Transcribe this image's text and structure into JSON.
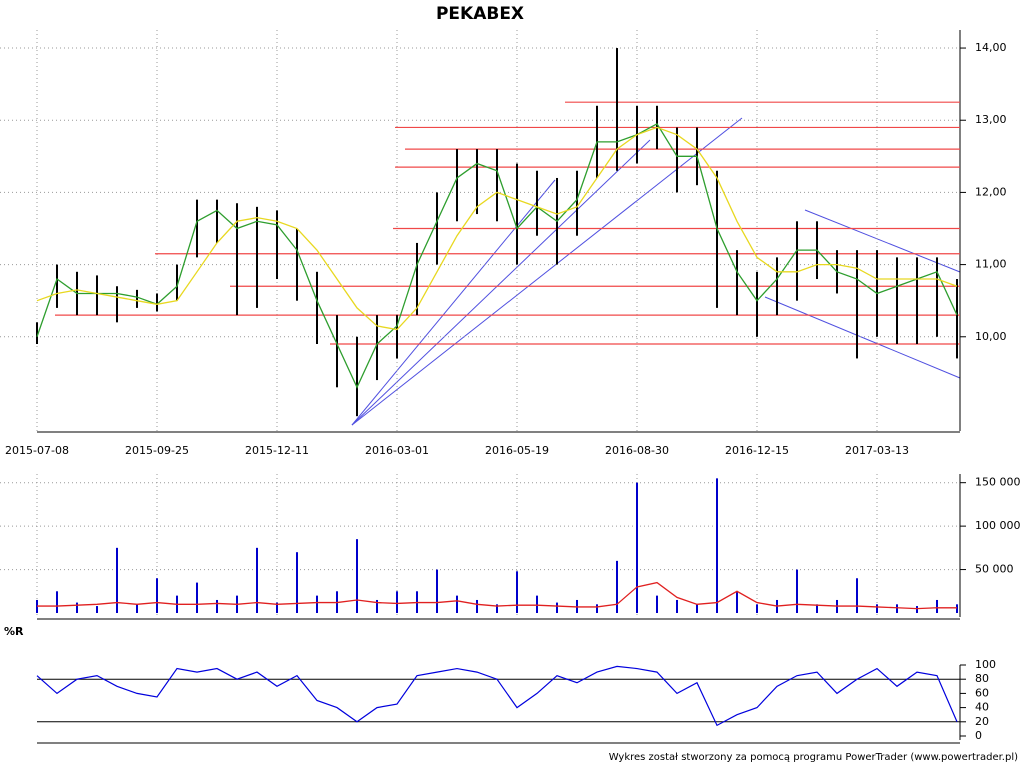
{
  "chart_data": [
    {
      "type": "ohlc",
      "title": "PEKABEX",
      "categories": [
        "2015-07-08",
        null,
        null,
        null,
        null,
        null,
        "2015-09-25",
        null,
        null,
        null,
        null,
        null,
        "2015-12-11",
        null,
        null,
        null,
        null,
        null,
        "2016-03-01",
        null,
        null,
        null,
        null,
        null,
        "2016-05-19",
        null,
        null,
        null,
        null,
        null,
        "2016-08-30",
        null,
        null,
        null,
        null,
        null,
        "2016-12-15",
        null,
        null,
        null,
        null,
        null,
        "2017-03-13",
        null,
        null,
        null,
        null
      ],
      "color": "#000000",
      "high": [
        10.2,
        11.0,
        10.9,
        10.85,
        10.7,
        10.65,
        10.6,
        11.0,
        11.9,
        11.9,
        11.85,
        11.8,
        11.75,
        11.5,
        10.9,
        10.3,
        10.0,
        10.3,
        10.3,
        11.3,
        12.0,
        12.6,
        12.6,
        12.6,
        12.4,
        12.3,
        12.2,
        12.3,
        13.2,
        14.0,
        13.2,
        13.2,
        12.9,
        12.9,
        12.3,
        11.2,
        10.9,
        11.1,
        11.6,
        11.6,
        11.2,
        11.2,
        11.2,
        11.1,
        11.1,
        11.1,
        10.8
      ],
      "low": [
        9.9,
        10.4,
        10.3,
        10.3,
        10.2,
        10.4,
        10.35,
        10.5,
        11.1,
        11.3,
        10.3,
        10.4,
        10.8,
        10.5,
        9.9,
        9.3,
        8.9,
        9.4,
        9.7,
        10.3,
        11.0,
        11.6,
        11.7,
        11.6,
        11.0,
        11.4,
        11.0,
        11.4,
        12.2,
        12.3,
        12.4,
        12.6,
        12.0,
        12.1,
        10.4,
        10.3,
        10.0,
        10.3,
        10.5,
        10.8,
        10.6,
        9.7,
        10.0,
        9.9,
        9.9,
        10.0,
        9.7
      ],
      "lines": [
        {
          "color": "#2e9e2e",
          "values": [
            10.0,
            10.8,
            10.6,
            10.6,
            10.6,
            10.55,
            10.45,
            10.7,
            11.6,
            11.75,
            11.5,
            11.6,
            11.55,
            11.2,
            10.5,
            9.9,
            9.3,
            9.9,
            10.15,
            11.0,
            11.6,
            12.2,
            12.4,
            12.3,
            11.5,
            11.8,
            11.6,
            11.9,
            12.7,
            12.7,
            12.8,
            12.95,
            12.5,
            12.5,
            11.5,
            10.9,
            10.5,
            10.8,
            11.2,
            11.2,
            10.9,
            10.8,
            10.6,
            10.7,
            10.8,
            10.9,
            10.3
          ]
        },
        {
          "color": "#e8d820",
          "values": [
            10.5,
            10.6,
            10.65,
            10.6,
            10.55,
            10.5,
            10.45,
            10.5,
            10.9,
            11.3,
            11.6,
            11.65,
            11.6,
            11.5,
            11.2,
            10.8,
            10.4,
            10.15,
            10.1,
            10.4,
            10.9,
            11.4,
            11.8,
            12.0,
            11.9,
            11.8,
            11.7,
            11.8,
            12.2,
            12.6,
            12.8,
            12.9,
            12.8,
            12.6,
            12.2,
            11.6,
            11.1,
            10.9,
            10.9,
            11.0,
            11.0,
            10.95,
            10.8,
            10.8,
            10.8,
            10.8,
            10.7
          ]
        }
      ],
      "levels": {
        "color": "#f04848",
        "values": [
          13.25,
          12.9,
          12.6,
          12.35,
          11.5,
          11.15,
          10.7,
          10.3,
          9.9
        ]
      },
      "ylim": [
        8.75,
        14.25
      ],
      "yticks": [
        {
          "value": 10,
          "label": "10,00"
        },
        {
          "value": 11,
          "label": "11,00"
        },
        {
          "value": 12,
          "label": "12,00"
        },
        {
          "value": 13,
          "label": "13,00"
        },
        {
          "value": 14,
          "label": "14,00"
        }
      ],
      "grid": true
    },
    {
      "type": "bar",
      "color": "#0000cc",
      "values": [
        15000,
        25000,
        12000,
        8000,
        75000,
        10000,
        40000,
        20000,
        35000,
        15000,
        20000,
        75000,
        12000,
        70000,
        20000,
        25000,
        85000,
        15000,
        25000,
        25000,
        50000,
        20000,
        15000,
        10000,
        48000,
        20000,
        12000,
        15000,
        10000,
        60000,
        150000,
        20000,
        15000,
        10000,
        155000,
        25000,
        10000,
        15000,
        50000,
        10000,
        15000,
        40000,
        10000,
        10000,
        8000,
        15000,
        10000
      ],
      "lines": [
        {
          "color": "#e02020",
          "values": [
            8000,
            8000,
            9000,
            10000,
            12000,
            10000,
            12000,
            10000,
            10000,
            11000,
            10000,
            12000,
            10000,
            11000,
            12000,
            12000,
            15000,
            12000,
            11000,
            12000,
            12000,
            14000,
            10000,
            8000,
            9000,
            9000,
            8000,
            7000,
            7000,
            10000,
            30000,
            35000,
            18000,
            10000,
            12000,
            25000,
            12000,
            8000,
            10000,
            9000,
            8000,
            8000,
            7000,
            6000,
            5000,
            6000,
            6000
          ]
        }
      ],
      "ylim": [
        0,
        160000
      ],
      "yticks": [
        {
          "value": 50000,
          "label": "50 000"
        },
        {
          "value": 100000,
          "label": "100 000"
        },
        {
          "value": 150000,
          "label": "150 000"
        }
      ],
      "grid": true
    },
    {
      "type": "line",
      "title": "%R",
      "color": "#0000dd",
      "values": [
        85,
        60,
        80,
        85,
        70,
        60,
        55,
        95,
        90,
        95,
        80,
        90,
        70,
        85,
        50,
        40,
        20,
        40,
        45,
        85,
        90,
        95,
        90,
        80,
        40,
        60,
        85,
        75,
        90,
        98,
        95,
        90,
        60,
        75,
        15,
        30,
        40,
        70,
        85,
        90,
        60,
        80,
        95,
        70,
        90,
        85,
        20
      ],
      "hlines": [
        20,
        80
      ],
      "ylim": [
        0,
        100
      ],
      "yticks": [
        0,
        20,
        40,
        60,
        80,
        100
      ],
      "grid": false
    }
  ],
  "footer": "Wykres został stworzony za pomocą programu PowerTrader (www.powertrader.pl)"
}
